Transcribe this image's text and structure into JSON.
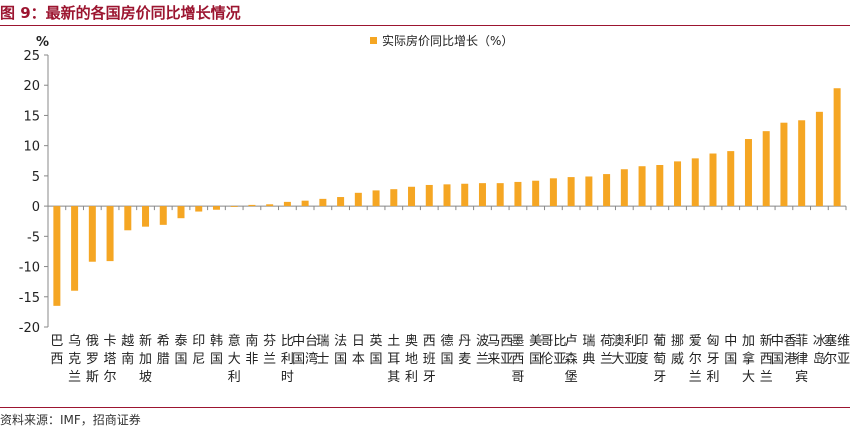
{
  "title": "图 9：最新的各国房价同比增长情况",
  "source": "资料来源：IMF，招商证券",
  "colors": {
    "accent": "#9c1530",
    "bar": "#f5a623",
    "axis": "#888888",
    "text": "#222222"
  },
  "chart_data": {
    "type": "bar",
    "ylabel": "%",
    "ylim": [
      -20,
      25
    ],
    "yticks": [
      -20,
      -15,
      -10,
      -5,
      0,
      5,
      10,
      15,
      20,
      25
    ],
    "grid": false,
    "legend_position": "top-center",
    "series": [
      {
        "name": "实际房价同比增长（%）",
        "values": [
          -16.5,
          -14,
          -9.2,
          -9.1,
          -4,
          -3.4,
          -3.1,
          -2,
          -0.9,
          -0.6,
          -0.1,
          0.2,
          0.3,
          0.7,
          0.9,
          1.2,
          1.5,
          2.2,
          2.6,
          2.8,
          3.2,
          3.5,
          3.6,
          3.7,
          3.8,
          3.8,
          4.0,
          4.2,
          4.6,
          4.8,
          4.9,
          5.3,
          6.1,
          6.6,
          6.8,
          7.4,
          7.9,
          8.7,
          9.1,
          11.1,
          12.4,
          13.8,
          14.2,
          15.6,
          19.5
        ]
      }
    ],
    "categories": [
      "巴西",
      "乌克兰",
      "俄罗斯",
      "卡塔尔",
      "越南",
      "新加坡",
      "希腊",
      "泰国",
      "印尼",
      "韩国",
      "意大利",
      "南非",
      "芬兰",
      "比利时",
      "中国台湾",
      "瑞士",
      "法国",
      "日本",
      "英国",
      "土耳其",
      "奥地利",
      "西班牙",
      "德国",
      "丹麦",
      "波兰",
      "马来西亚",
      "墨西哥",
      "美国",
      "哥伦比亚",
      "卢森堡",
      "瑞典",
      "荷兰",
      "澳大利亚",
      "印度",
      "葡萄牙",
      "挪威",
      "爱尔兰",
      "匈牙利",
      "中国",
      "加拿大",
      "新西兰",
      "中国香港",
      "菲律宾",
      "冰岛",
      "塞尔维亚"
    ]
  }
}
